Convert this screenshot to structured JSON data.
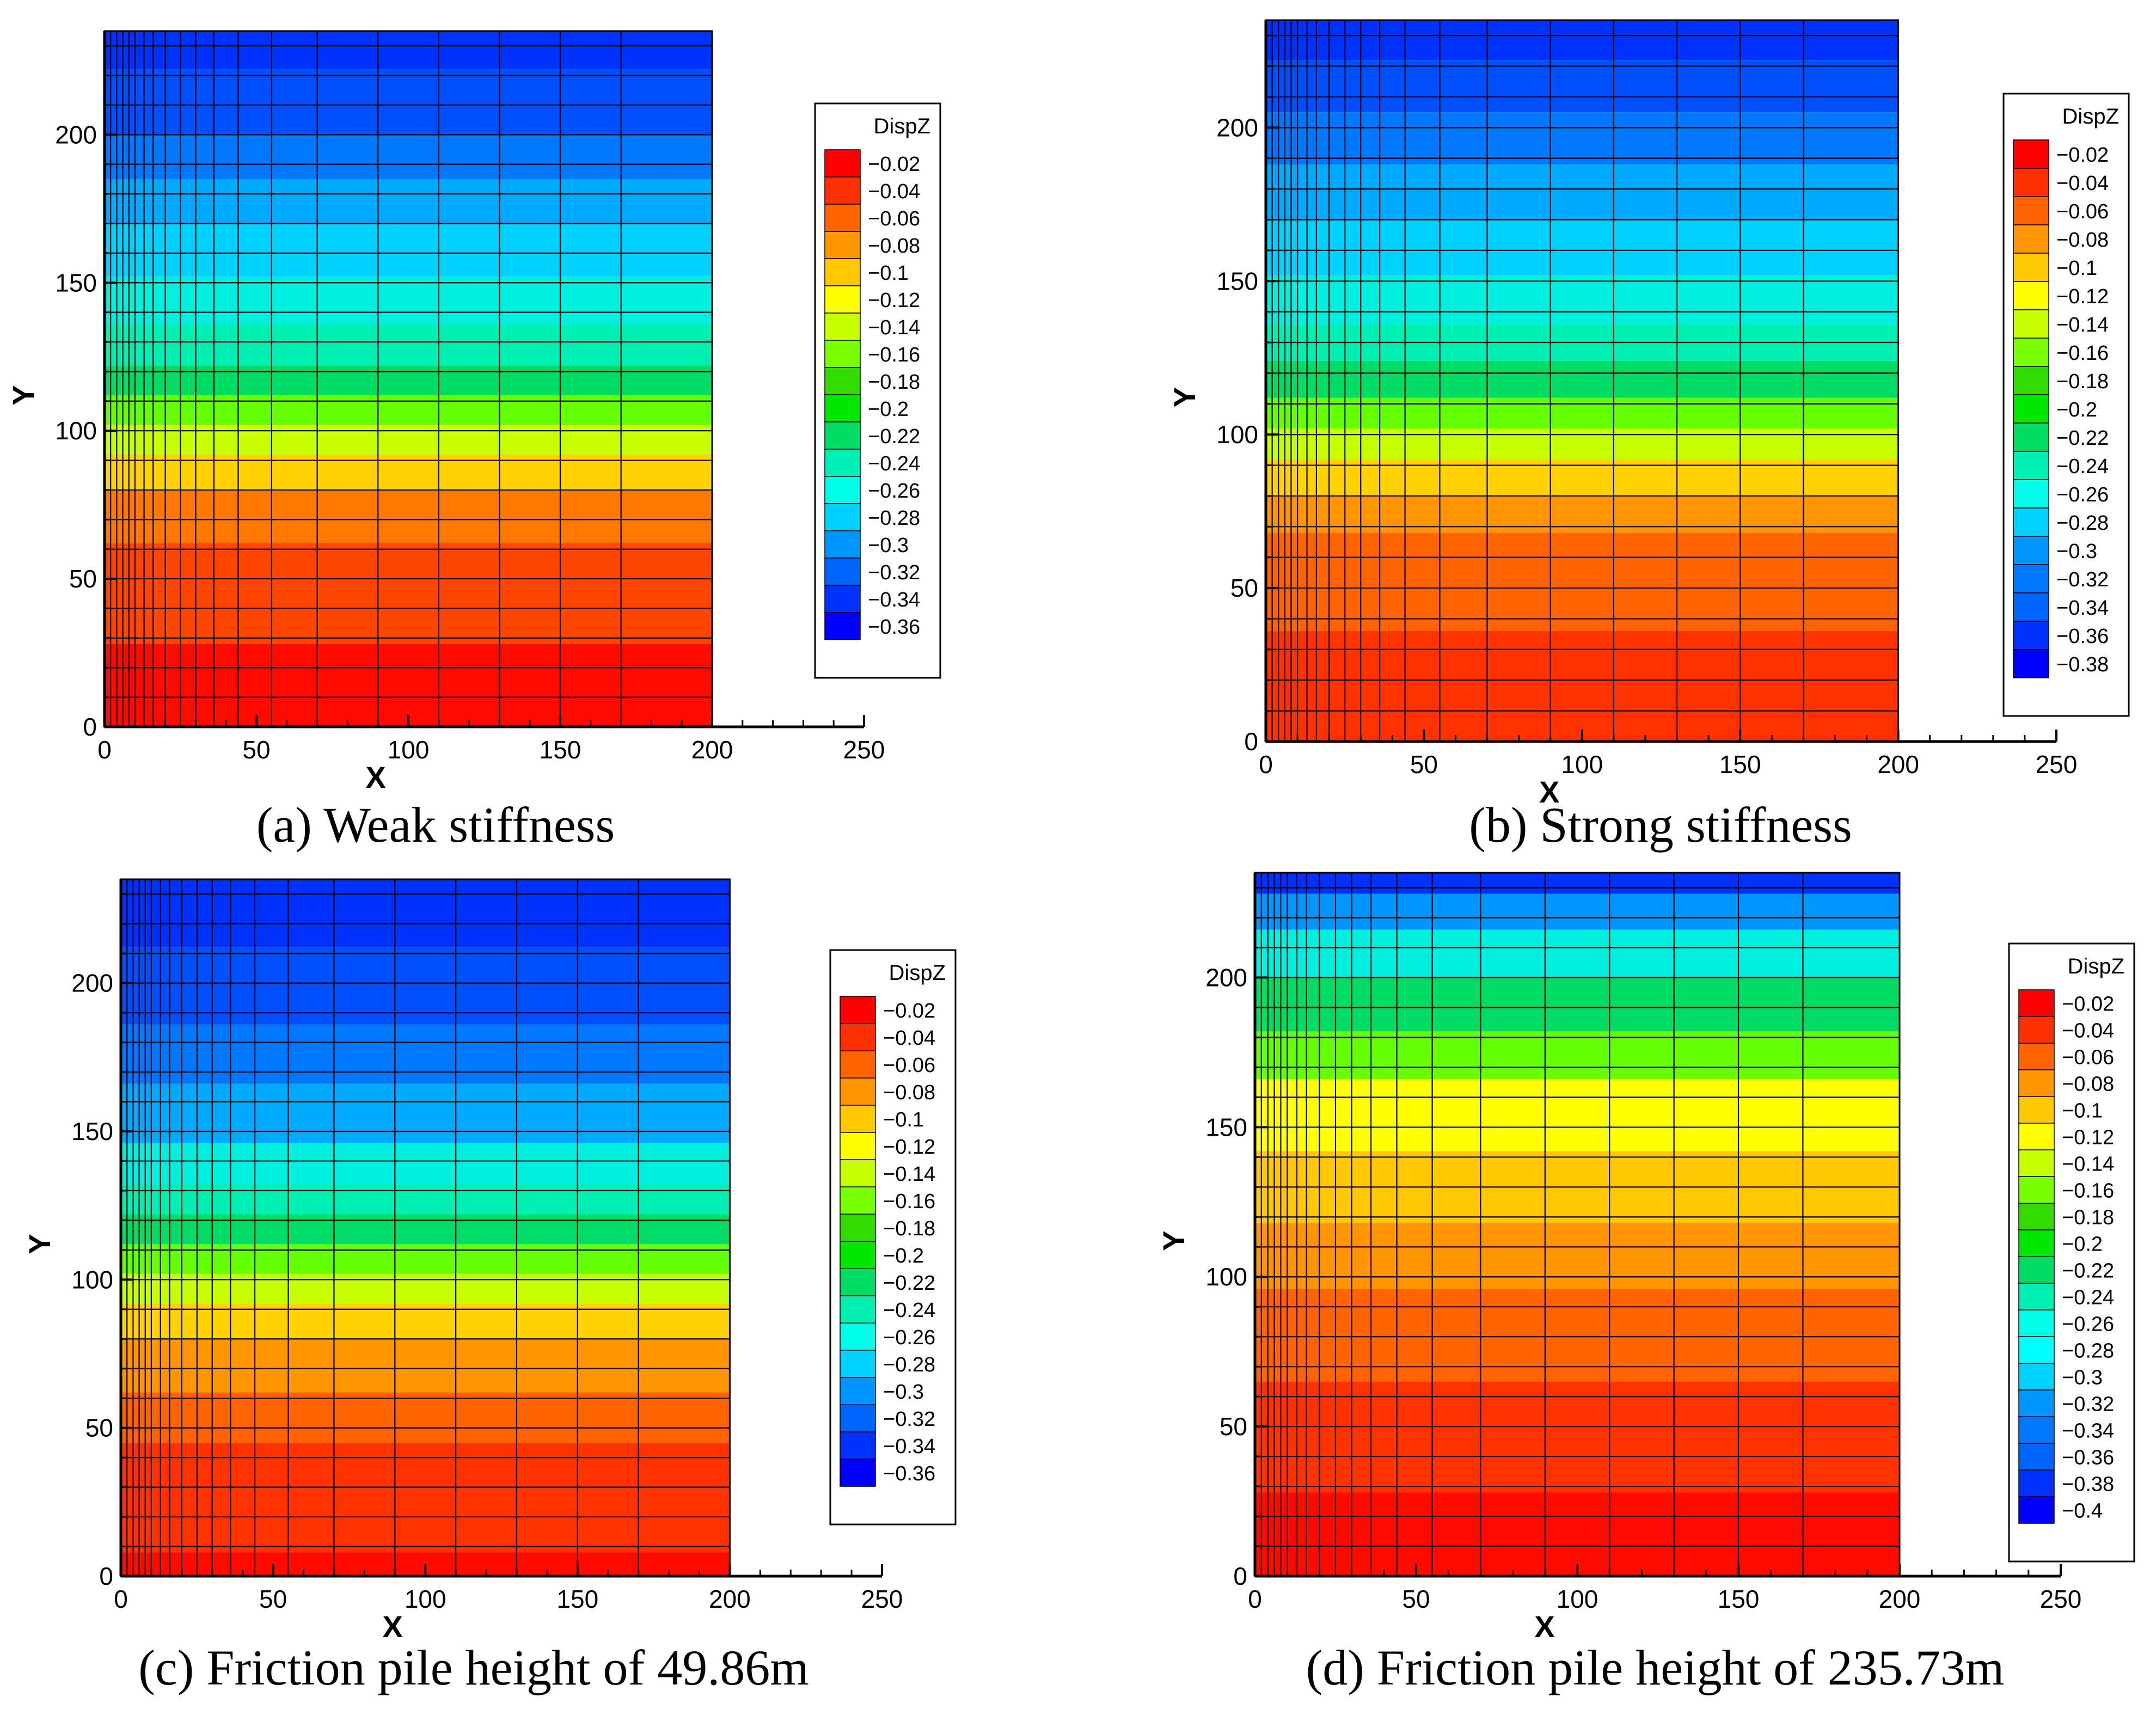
{
  "chart_data": [
    {
      "type": "heatmap",
      "caption": "(a) Weak stiffness",
      "xlabel": "X",
      "ylabel": "Y",
      "xlim": [
        0,
        250
      ],
      "ylim": [
        0,
        235
      ],
      "xticks": [
        "0",
        "50",
        "100",
        "150",
        "200",
        "250"
      ],
      "yticks": [
        "0",
        "50",
        "100",
        "150",
        "200"
      ],
      "data_extent_x": [
        0,
        200
      ],
      "legend_title": "DispZ",
      "legend_levels": [
        "-0.02",
        "-0.04",
        "-0.06",
        "-0.08",
        "-0.1",
        "-0.12",
        "-0.14",
        "-0.16",
        "-0.18",
        "-0.2",
        "-0.22",
        "-0.24",
        "-0.26",
        "-0.28",
        "-0.3",
        "-0.32",
        "-0.34",
        "-0.36"
      ],
      "legend_colors": [
        "#ff0000",
        "#ff3000",
        "#ff6400",
        "#ff9600",
        "#ffc800",
        "#ffff00",
        "#c8ff00",
        "#7aff00",
        "#32dc00",
        "#00e800",
        "#00dc64",
        "#00f0b4",
        "#00ffe6",
        "#00d2ff",
        "#0096ff",
        "#0064ff",
        "#0032ff",
        "#0000ff"
      ],
      "contour_bands": [
        {
          "y_top": 235,
          "y_bottom": 222,
          "color": "#0032ff"
        },
        {
          "y_top": 222,
          "y_bottom": 200,
          "color": "#0050ff"
        },
        {
          "y_top": 200,
          "y_bottom": 185,
          "color": "#0078ff"
        },
        {
          "y_top": 185,
          "y_bottom": 170,
          "color": "#00aaff"
        },
        {
          "y_top": 170,
          "y_bottom": 152,
          "color": "#00d2ff"
        },
        {
          "y_top": 152,
          "y_bottom": 136,
          "color": "#00f0e0"
        },
        {
          "y_top": 136,
          "y_bottom": 122,
          "color": "#00f0b4"
        },
        {
          "y_top": 122,
          "y_bottom": 112,
          "color": "#00dc64"
        },
        {
          "y_top": 112,
          "y_bottom": 102,
          "color": "#64ff00"
        },
        {
          "y_top": 102,
          "y_bottom": 92,
          "color": "#c8ff00"
        },
        {
          "y_top": 92,
          "y_bottom": 80,
          "color": "#ffd200"
        },
        {
          "y_top": 80,
          "y_bottom": 62,
          "color": "#ff7800"
        },
        {
          "y_top": 62,
          "y_bottom": 28,
          "color": "#ff4600"
        },
        {
          "y_top": 28,
          "y_bottom": 0,
          "color": "#ff0a00"
        }
      ]
    },
    {
      "type": "heatmap",
      "caption": "(b) Strong stiffness",
      "xlabel": "X",
      "ylabel": "Y",
      "xlim": [
        0,
        250
      ],
      "ylim": [
        0,
        235
      ],
      "xticks": [
        "0",
        "50",
        "100",
        "150",
        "200",
        "250"
      ],
      "yticks": [
        "0",
        "50",
        "100",
        "150",
        "200"
      ],
      "data_extent_x": [
        0,
        200
      ],
      "legend_title": "DispZ",
      "legend_levels": [
        "-0.02",
        "-0.04",
        "-0.06",
        "-0.08",
        "-0.1",
        "-0.12",
        "-0.14",
        "-0.16",
        "-0.18",
        "-0.2",
        "-0.22",
        "-0.24",
        "-0.26",
        "-0.28",
        "-0.3",
        "-0.32",
        "-0.34",
        "-0.36",
        "-0.38"
      ],
      "legend_colors": [
        "#ff0000",
        "#ff3000",
        "#ff6400",
        "#ff9600",
        "#ffc800",
        "#ffff00",
        "#c8ff00",
        "#7aff00",
        "#32dc00",
        "#00e800",
        "#00dc64",
        "#00f0b4",
        "#00ffe6",
        "#00d2ff",
        "#0096ff",
        "#0078ff",
        "#0064ff",
        "#0032ff",
        "#0000ff"
      ],
      "contour_bands": [
        {
          "y_top": 235,
          "y_bottom": 222,
          "color": "#0032ff"
        },
        {
          "y_top": 222,
          "y_bottom": 205,
          "color": "#0050ff"
        },
        {
          "y_top": 205,
          "y_bottom": 188,
          "color": "#0078ff"
        },
        {
          "y_top": 188,
          "y_bottom": 170,
          "color": "#00aaff"
        },
        {
          "y_top": 170,
          "y_bottom": 152,
          "color": "#00d2ff"
        },
        {
          "y_top": 152,
          "y_bottom": 136,
          "color": "#00f0e0"
        },
        {
          "y_top": 136,
          "y_bottom": 124,
          "color": "#00f0b4"
        },
        {
          "y_top": 124,
          "y_bottom": 112,
          "color": "#00dc64"
        },
        {
          "y_top": 112,
          "y_bottom": 102,
          "color": "#64ff00"
        },
        {
          "y_top": 102,
          "y_bottom": 92,
          "color": "#c8ff00"
        },
        {
          "y_top": 92,
          "y_bottom": 80,
          "color": "#ffd200"
        },
        {
          "y_top": 80,
          "y_bottom": 68,
          "color": "#ff9600"
        },
        {
          "y_top": 68,
          "y_bottom": 36,
          "color": "#ff6400"
        },
        {
          "y_top": 36,
          "y_bottom": 0,
          "color": "#ff3200"
        }
      ]
    },
    {
      "type": "heatmap",
      "caption": "(c) Friction pile height of 49.86m",
      "xlabel": "X",
      "ylabel": "Y",
      "xlim": [
        0,
        250
      ],
      "ylim": [
        0,
        235
      ],
      "xticks": [
        "0",
        "50",
        "100",
        "150",
        "200",
        "250"
      ],
      "yticks": [
        "0",
        "50",
        "100",
        "150",
        "200"
      ],
      "data_extent_x": [
        0,
        200
      ],
      "legend_title": "DispZ",
      "legend_levels": [
        "-0.02",
        "-0.04",
        "-0.06",
        "-0.08",
        "-0.1",
        "-0.12",
        "-0.14",
        "-0.16",
        "-0.18",
        "-0.2",
        "-0.22",
        "-0.24",
        "-0.26",
        "-0.28",
        "-0.3",
        "-0.32",
        "-0.34",
        "-0.36"
      ],
      "legend_colors": [
        "#ff0000",
        "#ff3000",
        "#ff6400",
        "#ff9600",
        "#ffc800",
        "#ffff00",
        "#c8ff00",
        "#7aff00",
        "#32dc00",
        "#00e800",
        "#00dc64",
        "#00f0b4",
        "#00ffe6",
        "#00d2ff",
        "#0096ff",
        "#0064ff",
        "#0032ff",
        "#0000ff"
      ],
      "contour_bands": [
        {
          "y_top": 235,
          "y_bottom": 212,
          "color": "#0032ff"
        },
        {
          "y_top": 212,
          "y_bottom": 186,
          "color": "#0050ff"
        },
        {
          "y_top": 186,
          "y_bottom": 166,
          "color": "#0078ff"
        },
        {
          "y_top": 166,
          "y_bottom": 146,
          "color": "#00aaff"
        },
        {
          "y_top": 146,
          "y_bottom": 132,
          "color": "#00f0e0"
        },
        {
          "y_top": 132,
          "y_bottom": 122,
          "color": "#00f0b4"
        },
        {
          "y_top": 122,
          "y_bottom": 112,
          "color": "#00dc64"
        },
        {
          "y_top": 112,
          "y_bottom": 102,
          "color": "#64ff00"
        },
        {
          "y_top": 102,
          "y_bottom": 92,
          "color": "#c8ff00"
        },
        {
          "y_top": 92,
          "y_bottom": 80,
          "color": "#ffd200"
        },
        {
          "y_top": 80,
          "y_bottom": 62,
          "color": "#ff9600"
        },
        {
          "y_top": 62,
          "y_bottom": 45,
          "color": "#ff6400"
        },
        {
          "y_top": 45,
          "y_bottom": 8,
          "color": "#ff3200"
        },
        {
          "y_top": 8,
          "y_bottom": 0,
          "color": "#ff0a00"
        }
      ]
    },
    {
      "type": "heatmap",
      "caption": "(d) Friction pile height of 235.73m",
      "xlabel": "X",
      "ylabel": "Y",
      "xlim": [
        0,
        250
      ],
      "ylim": [
        0,
        235
      ],
      "xticks": [
        "0",
        "50",
        "100",
        "150",
        "200",
        "250"
      ],
      "yticks": [
        "0",
        "50",
        "100",
        "150",
        "200"
      ],
      "data_extent_x": [
        0,
        200
      ],
      "legend_title": "DispZ",
      "legend_levels": [
        "-0.02",
        "-0.04",
        "-0.06",
        "-0.08",
        "-0.1",
        "-0.12",
        "-0.14",
        "-0.16",
        "-0.18",
        "-0.2",
        "-0.22",
        "-0.24",
        "-0.26",
        "-0.28",
        "-0.3",
        "-0.32",
        "-0.34",
        "-0.36",
        "-0.38",
        "-0.4"
      ],
      "legend_colors": [
        "#ff0000",
        "#ff3000",
        "#ff6400",
        "#ff9600",
        "#ffc800",
        "#ffff00",
        "#c8ff00",
        "#7aff00",
        "#32dc00",
        "#00e800",
        "#00dc64",
        "#00f0b4",
        "#00ffe6",
        "#00ffff",
        "#00d2ff",
        "#0096ff",
        "#0078ff",
        "#0064ff",
        "#0032ff",
        "#0000ff"
      ],
      "contour_bands": [
        {
          "y_top": 235,
          "y_bottom": 228,
          "color": "#0032ff"
        },
        {
          "y_top": 228,
          "y_bottom": 216,
          "color": "#0096ff"
        },
        {
          "y_top": 216,
          "y_bottom": 200,
          "color": "#00f0e0"
        },
        {
          "y_top": 200,
          "y_bottom": 182,
          "color": "#00dc64"
        },
        {
          "y_top": 182,
          "y_bottom": 166,
          "color": "#64ff00"
        },
        {
          "y_top": 166,
          "y_bottom": 142,
          "color": "#ffff00"
        },
        {
          "y_top": 142,
          "y_bottom": 118,
          "color": "#ffc800"
        },
        {
          "y_top": 118,
          "y_bottom": 96,
          "color": "#ff9600"
        },
        {
          "y_top": 96,
          "y_bottom": 65,
          "color": "#ff6400"
        },
        {
          "y_top": 65,
          "y_bottom": 28,
          "color": "#ff3200"
        },
        {
          "y_top": 28,
          "y_bottom": 0,
          "color": "#ff0a00"
        }
      ]
    }
  ]
}
